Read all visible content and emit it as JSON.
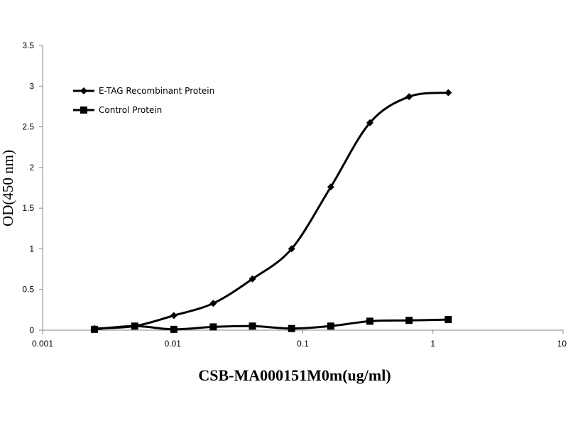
{
  "chart_data": {
    "type": "line",
    "xlabel": "CSB-MA000151M0m(ug/ml)",
    "ylabel": "OD(450 nm)",
    "xscale": "log",
    "xlim": [
      0.001,
      10
    ],
    "ylim": [
      0,
      3.5
    ],
    "grid": false,
    "legend_position": "top-left",
    "x_ticks": [
      {
        "value": 0.001,
        "label": "0.001"
      },
      {
        "value": 0.01,
        "label": "0.01"
      },
      {
        "value": 0.1,
        "label": "0.1"
      },
      {
        "value": 1,
        "label": "1"
      },
      {
        "value": 10,
        "label": "10"
      }
    ],
    "y_ticks": [
      {
        "value": 0,
        "label": "0"
      },
      {
        "value": 0.5,
        "label": "0.5"
      },
      {
        "value": 1,
        "label": "1"
      },
      {
        "value": 1.5,
        "label": "1.5"
      },
      {
        "value": 2,
        "label": "2"
      },
      {
        "value": 2.5,
        "label": "2.5"
      },
      {
        "value": 3,
        "label": "3"
      },
      {
        "value": 3.5,
        "label": "3.5"
      }
    ],
    "series": [
      {
        "name": "E-TAG Recombinant Protein",
        "marker": "diamond",
        "color": "#000000",
        "x": [
          0.0025,
          0.0051,
          0.0102,
          0.0205,
          0.041,
          0.082,
          0.164,
          0.328,
          0.656,
          1.3125
        ],
        "y": [
          0.02,
          0.05,
          0.18,
          0.33,
          0.63,
          1.0,
          1.76,
          2.55,
          2.87,
          2.92
        ]
      },
      {
        "name": "Control Protein",
        "marker": "square",
        "color": "#000000",
        "x": [
          0.0025,
          0.0051,
          0.0102,
          0.0205,
          0.041,
          0.082,
          0.164,
          0.328,
          0.656,
          1.3125
        ],
        "y": [
          0.01,
          0.05,
          0.01,
          0.04,
          0.05,
          0.02,
          0.05,
          0.11,
          0.12,
          0.13
        ]
      }
    ]
  }
}
